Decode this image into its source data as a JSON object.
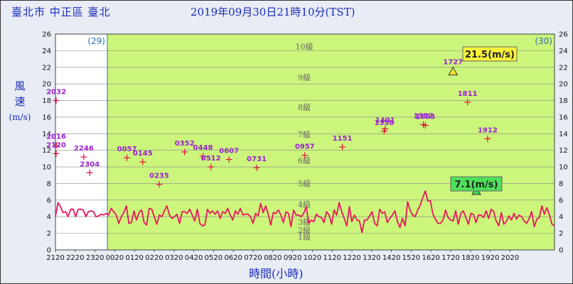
{
  "header": {
    "station": "臺北市 中正區 臺北",
    "timestamp": "2019年09月30日21時10分(TST)"
  },
  "axis": {
    "ylabel_chars": [
      "風",
      "速"
    ],
    "yunit": "(m/s)",
    "xlabel": "時間(小時)"
  },
  "chart_data": {
    "type": "line",
    "ylim": [
      0,
      26
    ],
    "yticks": [
      0,
      2,
      4,
      6,
      8,
      10,
      12,
      14,
      16,
      18,
      20,
      22,
      24,
      26
    ],
    "x_tick_labels": [
      "2120",
      "2220",
      "2320",
      "0020",
      "0120",
      "0220",
      "0320",
      "0420",
      "0520",
      "0620",
      "0720",
      "0820",
      "0920",
      "1020",
      "1120",
      "1220",
      "1320",
      "1420",
      "1520",
      "1620",
      "1720",
      "1820",
      "1920",
      "2020"
    ],
    "day_markers": [
      "(29)",
      "(30)"
    ],
    "beaufort_levels": [
      {
        "label": "1級",
        "speed": 1.5
      },
      {
        "label": "2級",
        "speed": 2.3
      },
      {
        "label": "3級",
        "speed": 3.3
      },
      {
        "label": "4級",
        "speed": 5.4
      },
      {
        "label": "5級",
        "speed": 7.9
      },
      {
        "label": "6級",
        "speed": 10.7
      },
      {
        "label": "7級",
        "speed": 13.8
      },
      {
        "label": "8級",
        "speed": 17.1
      },
      {
        "label": "9級",
        "speed": 20.7
      },
      {
        "label": "10級",
        "speed": 24.4
      }
    ],
    "gusts": [
      {
        "time": "2016",
        "value": 12.6
      },
      {
        "time": "2120",
        "value": 11.6
      },
      {
        "time": "2246",
        "value": 11.2
      },
      {
        "time": "2304",
        "value": 9.3
      },
      {
        "time": "0057",
        "value": 11.1
      },
      {
        "time": "0145",
        "value": 10.6
      },
      {
        "time": "0235",
        "value": 7.9
      },
      {
        "time": "0352",
        "value": 11.8
      },
      {
        "time": "0448",
        "value": 11.3
      },
      {
        "time": "0512",
        "value": 10.0
      },
      {
        "time": "0607",
        "value": 10.9
      },
      {
        "time": "0731",
        "value": 9.9
      },
      {
        "time": "0957",
        "value": 11.4
      },
      {
        "time": "1151",
        "value": 12.4
      },
      {
        "time": "1358",
        "value": 14.3
      },
      {
        "time": "1401",
        "value": 14.6
      },
      {
        "time": "1557",
        "value": 15.1
      },
      {
        "time": "1603",
        "value": 15.0
      },
      {
        "time": "1811",
        "value": 17.8
      },
      {
        "time": "1912",
        "value": 13.4
      },
      {
        "time": "2032",
        "value": 18.0
      }
    ],
    "max_gust": {
      "time": "1727",
      "value": 21.5,
      "label": "21.5(m/s)"
    },
    "max_wind": {
      "value": 7.1,
      "label": "7.1(m/s)"
    },
    "series": [
      {
        "values": [
          4.0,
          5.7,
          5.2,
          4.5,
          4.6,
          4.0,
          4.9,
          4.9,
          4.0,
          4.9,
          4.9,
          4.8,
          4.0,
          4.6,
          4.7,
          4.6,
          4.0,
          4.1,
          4.3,
          4.2,
          4.4,
          4.2,
          5.0,
          4.6,
          4.2,
          3.2,
          4.0,
          4.5,
          5.3,
          3.2,
          3.3,
          4.7,
          3.6,
          4.5,
          4.8,
          3.3,
          3.0,
          5.0,
          4.9,
          4.0,
          3.1,
          4.2,
          4.0,
          4.7,
          5.3,
          4.2,
          3.8,
          4.0,
          4.3,
          3.2,
          4.6,
          4.6,
          4.4,
          4.9,
          4.2,
          3.5,
          4.9,
          3.2,
          2.9,
          3.0,
          4.9,
          4.4,
          4.7,
          4.3,
          4.7,
          3.8,
          4.6,
          4.4,
          5.0,
          4.2,
          3.6,
          4.7,
          4.3,
          5.0,
          4.2,
          4.3,
          4.3,
          4.0,
          3.2,
          4.4,
          4.1,
          5.6,
          4.5,
          5.3,
          4.3,
          3.0,
          4.5,
          4.4,
          4.8,
          4.2,
          3.3,
          4.6,
          4.4,
          2.8,
          4.8,
          4.2,
          4.2,
          4.0,
          4.4,
          5.2,
          3.2,
          3.6,
          3.4,
          4.3,
          4.0,
          3.9,
          3.3,
          4.6,
          4.2,
          3.1,
          4.8,
          4.2,
          5.7,
          4.6,
          3.8,
          2.9,
          5.2,
          3.4,
          4.2,
          3.6,
          3.5,
          2.1,
          3.6,
          3.6,
          4.1,
          4.6,
          3.2,
          2.9,
          4.9,
          4.4,
          4.6,
          3.3,
          3.8,
          4.2,
          4.7,
          3.4,
          2.7,
          3.8,
          2.9,
          5.8,
          4.8,
          4.2,
          4.0,
          4.8,
          5.4,
          6.3,
          7.1,
          5.9,
          5.9,
          4.3,
          3.7,
          3.2,
          3.2,
          3.6,
          4.8,
          3.9,
          3.6,
          3.5,
          4.7,
          3.1,
          4.4,
          4.7,
          3.9,
          3.1,
          4.4,
          4.3,
          3.3,
          4.2,
          4.2,
          3.9,
          4.7,
          3.8,
          4.9,
          4.6,
          3.5,
          2.9,
          4.5,
          3.1,
          3.4,
          4.1,
          3.6,
          4.4,
          3.7,
          4.2,
          4.0,
          3.5,
          3.2,
          3.8,
          4.6,
          2.8,
          3.7,
          3.9,
          5.3,
          4.3,
          5.1,
          4.2,
          3.1,
          2.9
        ]
      }
    ]
  }
}
